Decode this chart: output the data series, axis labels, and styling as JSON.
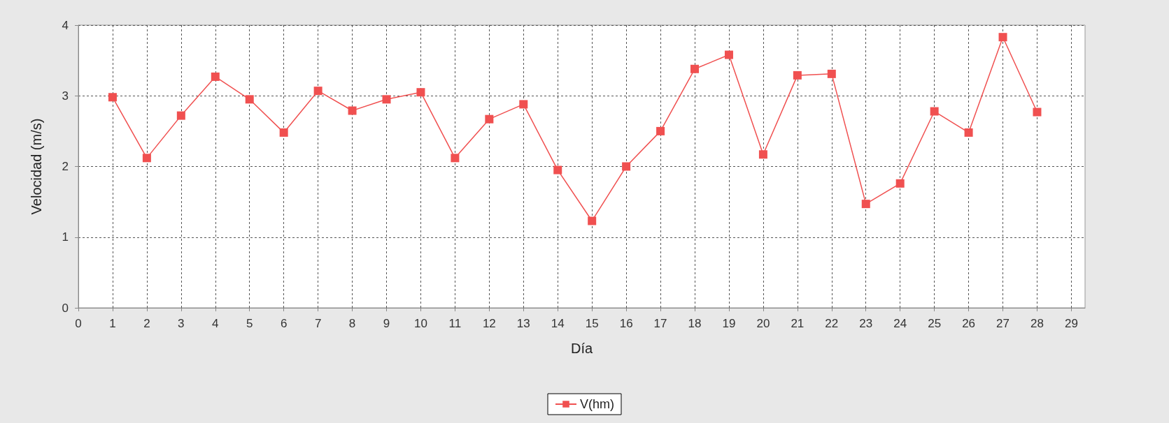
{
  "chart_data": {
    "type": "line",
    "xlabel": "Día",
    "ylabel": "Velocidad (m/s)",
    "x": [
      1,
      2,
      3,
      4,
      5,
      6,
      7,
      8,
      9,
      10,
      11,
      12,
      13,
      14,
      15,
      16,
      17,
      18,
      19,
      20,
      21,
      22,
      23,
      24,
      25,
      26,
      27,
      28
    ],
    "series": [
      {
        "name": "V(hm)",
        "color": "#f05050",
        "values": [
          2.98,
          2.12,
          2.72,
          3.27,
          2.95,
          2.48,
          3.07,
          2.79,
          2.95,
          3.05,
          2.12,
          2.67,
          2.88,
          1.95,
          1.23,
          2.0,
          2.5,
          3.38,
          3.58,
          2.17,
          3.29,
          3.31,
          1.47,
          1.76,
          2.78,
          2.48,
          3.83,
          2.77
        ]
      }
    ],
    "xlim": [
      0,
      29.4
    ],
    "xticks": [
      0,
      1,
      2,
      3,
      4,
      5,
      6,
      7,
      8,
      9,
      10,
      11,
      12,
      13,
      14,
      15,
      16,
      17,
      18,
      19,
      20,
      21,
      22,
      23,
      24,
      25,
      26,
      27,
      28,
      29
    ],
    "ylim": [
      0,
      4
    ],
    "yticks": [
      0,
      1,
      2,
      3,
      4
    ],
    "grid": true,
    "legend": "bottom",
    "marker": "square",
    "line_style": "solid"
  }
}
